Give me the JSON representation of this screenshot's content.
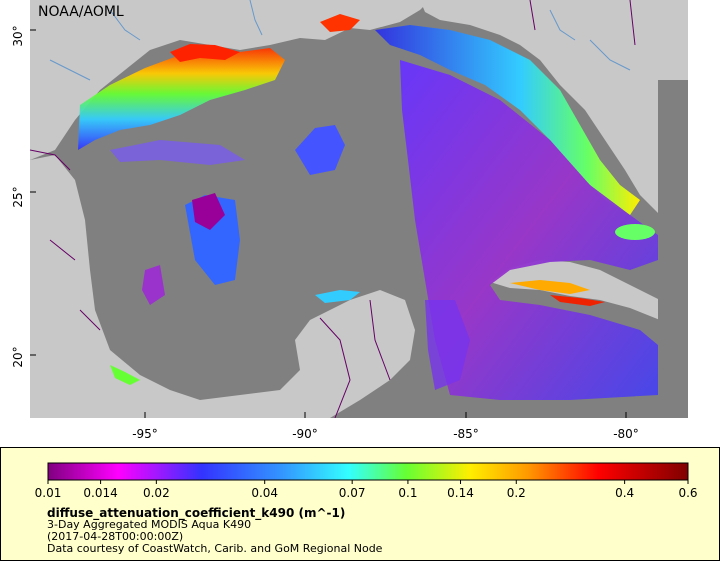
{
  "map": {
    "agency": "NOAA/AOML",
    "lon_ticks": [
      "-95°",
      "-90°",
      "-85°",
      "-80°"
    ],
    "lat_ticks": [
      "30°",
      "25°",
      "20°"
    ],
    "colors": {
      "land": "#c8c8c8",
      "no_data": "#808080",
      "rivers": "#6699cc",
      "borders": "#660066",
      "panel": "#ffffcc"
    }
  },
  "legend": {
    "scale": "log",
    "tick_values": [
      "0.01",
      "0.014",
      "0.02",
      "0.04",
      "0.07",
      "0.1",
      "0.14",
      "0.2",
      "0.4",
      "0.6"
    ],
    "title": "diffuse_attenuation_coefficient_k490 (m^-1)",
    "description": "3-Day Aggregated MODIS Aqua K490",
    "time": "(2017-04-28T00:00:00Z)",
    "credit": "Data courtesy of CoastWatch, Carib. and GoM Regional Node"
  }
}
